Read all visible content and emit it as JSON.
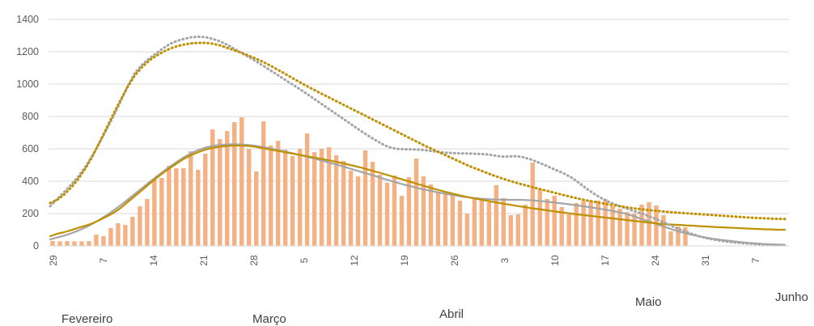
{
  "chart_data": {
    "type": "bar",
    "title": "",
    "xlabel": "",
    "ylabel": "",
    "ylim": [
      0,
      1400
    ],
    "y_ticks": [
      0,
      200,
      400,
      600,
      800,
      1000,
      1200,
      1400
    ],
    "grid": "horizontal",
    "x_tick_labels": [
      "29",
      "7",
      "14",
      "21",
      "28",
      "5",
      "12",
      "19",
      "26",
      "3",
      "10",
      "17",
      "24",
      "31",
      "7"
    ],
    "month_labels": [
      "Fevereiro",
      "Março",
      "Abril",
      "Maio",
      "Junho"
    ],
    "colors": {
      "bars": "#f4b183",
      "gold": "#bf9000",
      "gray": "#a5a5a5",
      "grid": "#d9d9d9"
    },
    "series": [
      {
        "values": [
          30,
          28,
          30,
          28,
          28,
          30,
          70,
          60,
          110,
          140,
          130,
          180,
          245,
          290,
          410,
          420,
          495,
          480,
          480,
          585,
          470,
          570,
          720,
          660,
          710,
          765,
          795,
          600,
          460,
          770,
          620,
          650,
          595,
          555,
          600,
          695,
          580,
          600,
          610,
          560,
          525,
          465,
          430,
          590,
          520,
          440,
          390,
          435,
          310,
          425,
          540,
          430,
          380,
          335,
          330,
          310,
          280,
          200,
          290,
          290,
          270,
          375,
          295,
          190,
          195,
          255,
          515,
          350,
          290,
          310,
          240,
          195,
          265,
          280,
          280,
          280,
          290,
          245,
          230,
          210,
          200,
          255,
          270,
          250,
          190,
          90,
          120,
          115
        ]
      },
      {
        "values": [
          60,
          75,
          85,
          98,
          112,
          125,
          140,
          160,
          182,
          205,
          235,
          272,
          308,
          345,
          382,
          418,
          452,
          483,
          512,
          540,
          562,
          580,
          596,
          606,
          613,
          618,
          620,
          620,
          618,
          613,
          605,
          597,
          589,
          581,
          573,
          565,
          557,
          549,
          541,
          533,
          524,
          515,
          505,
          495,
          484,
          472,
          460,
          448,
          435,
          422,
          409,
          396,
          383,
          370,
          357,
          345,
          334,
          323,
          313,
          303,
          294,
          286,
          278,
          270,
          262,
          255,
          248,
          241,
          234,
          228,
          222,
          216,
          210,
          204,
          198,
          193,
          188,
          183,
          178,
          173,
          168,
          163,
          158,
          153,
          148,
          143,
          138,
          134,
          132,
          130,
          127,
          125,
          122,
          120,
          117,
          115,
          113,
          111,
          109,
          107,
          105,
          103,
          102,
          100,
          100
        ]
      },
      {
        "values": [
          40,
          52,
          64,
          78,
          95,
          115,
          137,
          162,
          190,
          220,
          252,
          287,
          322,
          357,
          392,
          427,
          460,
          492,
          522,
          550,
          574,
          593,
          608,
          618,
          624,
          627,
          628,
          627,
          624,
          619,
          612,
          604,
          595,
          586,
          576,
          566,
          555,
          544,
          533,
          521,
          509,
          497,
          484,
          471,
          458,
          445,
          432,
          418,
          405,
          392,
          380,
          369,
          358,
          348,
          339,
          330,
          322,
          314,
          307,
          301,
          296,
          292,
          289,
          287,
          286,
          285,
          285,
          284,
          282,
          279,
          275,
          270,
          265,
          260,
          254,
          248,
          242,
          235,
          228,
          221,
          213,
          204,
          192,
          177,
          163,
          148,
          132,
          117,
          103,
          89,
          77,
          67,
          58,
          50,
          43,
          37,
          32,
          27,
          22,
          18,
          15,
          12,
          10,
          8,
          7
        ]
      },
      {
        "values": [
          265,
          285,
          318,
          362,
          415,
          480,
          555,
          640,
          730,
          820,
          905,
          985,
          1055,
          1105,
          1145,
          1175,
          1200,
          1220,
          1235,
          1245,
          1252,
          1255,
          1255,
          1250,
          1240,
          1225,
          1210,
          1195,
          1178,
          1160,
          1140,
          1118,
          1094,
          1070,
          1045,
          1020,
          996,
          973,
          950,
          928,
          906,
          884,
          862,
          840,
          818,
          796,
          774,
          752,
          730,
          708,
          686,
          664,
          642,
          620,
          600,
          580,
          560,
          540,
          520,
          500,
          482,
          465,
          448,
          432,
          417,
          403,
          390,
          378,
          366,
          355,
          344,
          333,
          322,
          311,
          300,
          290,
          281,
          273,
          265,
          257,
          250,
          243,
          236,
          230,
          225,
          220,
          216,
          212,
          208,
          205,
          202,
          199,
          196,
          193,
          190,
          187,
          184,
          181,
          178,
          175,
          173,
          171,
          169,
          167,
          166
        ]
      },
      {
        "values": [
          245,
          290,
          335,
          380,
          430,
          490,
          560,
          640,
          720,
          805,
          895,
          990,
          1070,
          1120,
          1158,
          1190,
          1222,
          1250,
          1268,
          1280,
          1290,
          1293,
          1290,
          1280,
          1265,
          1245,
          1220,
          1195,
          1170,
          1145,
          1118,
          1090,
          1062,
          1034,
          1006,
          978,
          950,
          920,
          890,
          860,
          830,
          800,
          770,
          740,
          710,
          682,
          655,
          630,
          610,
          600,
          598,
          597,
          596,
          592,
          586,
          580,
          576,
          574,
          572,
          571,
          570,
          568,
          565,
          558,
          552,
          553,
          555,
          548,
          535,
          518,
          500,
          480,
          462,
          442,
          417,
          385,
          352,
          322,
          296,
          274,
          256,
          240,
          225,
          210,
          195,
          180,
          162,
          143,
          123,
          104,
          87,
          72,
          58,
          47,
          38,
          31,
          25,
          21,
          17,
          14,
          11,
          9,
          7,
          6,
          5
        ]
      }
    ]
  }
}
